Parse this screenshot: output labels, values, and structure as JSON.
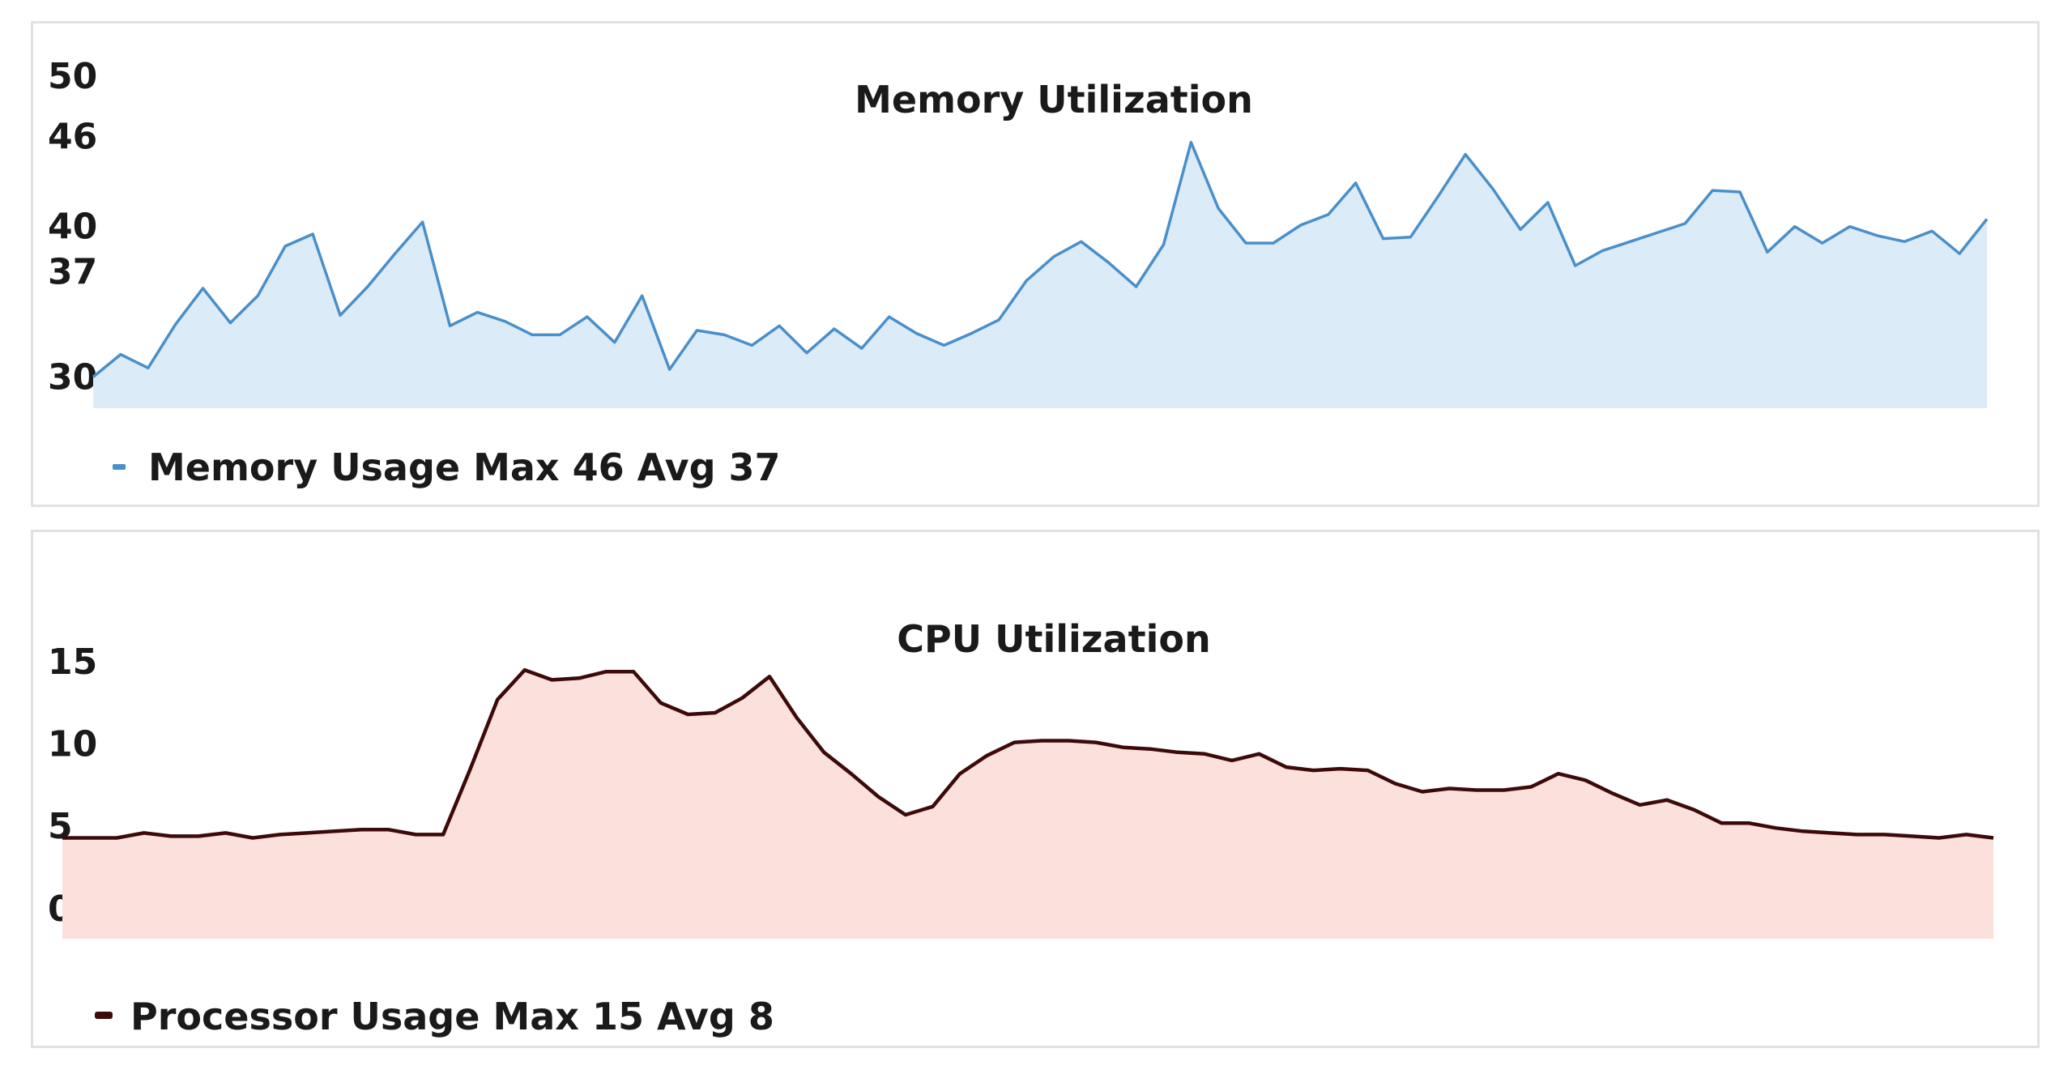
{
  "chart_data": [
    {
      "type": "area",
      "title": "Memory Utilization",
      "xlabel": "",
      "ylabel": "",
      "y_ticks": [
        30,
        37,
        40,
        46,
        50
      ],
      "ylim": [
        29,
        50
      ],
      "grid": false,
      "legend_placement": "bottom-left",
      "legend": "Memory Usage Max 46 Avg 37",
      "series": [
        {
          "color": "#4a8fc9",
          "fill": "#dcebf8",
          "values": [
            30.0,
            31.5,
            30.6,
            33.5,
            35.9,
            33.6,
            35.4,
            38.7,
            39.5,
            34.1,
            36.0,
            38.2,
            40.3,
            33.4,
            34.3,
            33.7,
            32.8,
            32.8,
            34.0,
            32.3,
            35.4,
            30.5,
            33.1,
            32.8,
            32.1,
            33.4,
            31.6,
            33.2,
            31.9,
            34.0,
            32.9,
            32.1,
            32.9,
            33.8,
            36.4,
            38.0,
            39.0,
            37.6,
            36.0,
            38.8,
            45.6,
            41.2,
            38.9,
            38.9,
            40.1,
            40.8,
            42.9,
            39.2,
            39.3,
            42.0,
            44.8,
            42.5,
            39.8,
            41.6,
            37.4,
            38.4,
            39.0,
            39.6,
            40.2,
            42.4,
            42.3,
            38.3,
            40.0,
            38.9,
            40.0,
            39.4,
            39.0,
            39.7,
            38.2,
            40.5
          ]
        }
      ]
    },
    {
      "type": "area",
      "title": "CPU Utilization",
      "xlabel": "",
      "ylabel": "",
      "y_ticks": [
        0,
        5,
        10,
        15
      ],
      "ylim": [
        -0.5,
        15
      ],
      "grid": false,
      "legend_placement": "bottom-left",
      "legend": "Processor Usage Max 15 Avg 8",
      "series": [
        {
          "color": "#3d0a0a",
          "fill": "#fbe0dc",
          "values": [
            4.3,
            4.3,
            4.3,
            4.6,
            4.4,
            4.4,
            4.6,
            4.3,
            4.5,
            4.6,
            4.7,
            4.8,
            4.8,
            4.5,
            4.5,
            8.5,
            12.7,
            14.5,
            13.9,
            14.0,
            14.4,
            14.4,
            12.5,
            11.8,
            11.9,
            12.8,
            14.1,
            11.6,
            9.5,
            8.2,
            6.8,
            5.7,
            6.2,
            8.2,
            9.3,
            10.1,
            10.2,
            10.2,
            10.1,
            9.8,
            9.7,
            9.5,
            9.4,
            9.0,
            9.4,
            8.6,
            8.4,
            8.5,
            8.4,
            7.6,
            7.1,
            7.3,
            7.2,
            7.2,
            7.4,
            8.2,
            7.8,
            7.0,
            6.3,
            6.6,
            6.0,
            5.2,
            5.2,
            4.9,
            4.7,
            4.6,
            4.5,
            4.5,
            4.4,
            4.3,
            4.5,
            4.3
          ]
        }
      ]
    }
  ]
}
